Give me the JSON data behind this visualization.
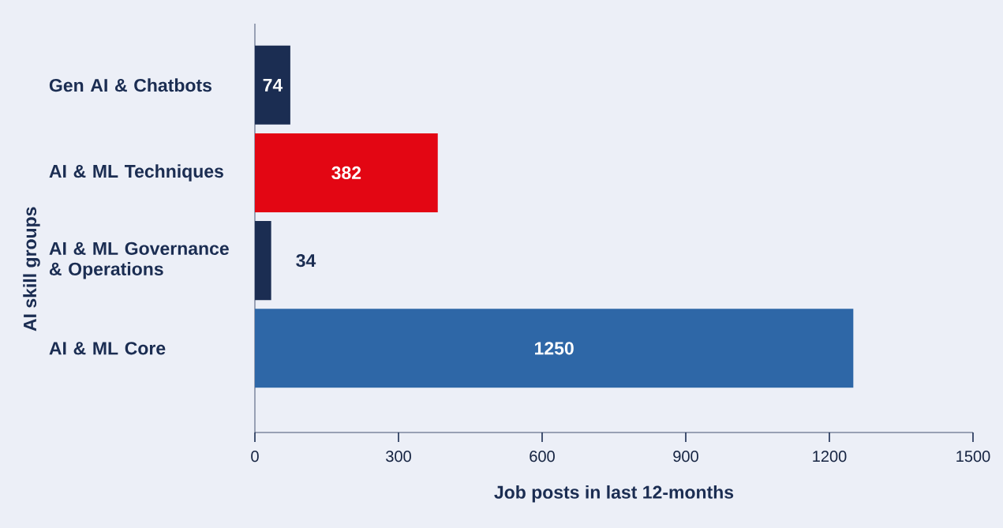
{
  "chart_data": {
    "type": "bar",
    "orientation": "horizontal",
    "categories": [
      "Gen AI & Chatbots",
      "AI & ML Techniques",
      "AI & ML Governance & Operations",
      "AI & ML Core"
    ],
    "values": [
      74,
      382,
      34,
      1250
    ],
    "colors": [
      "#1b2d52",
      "#e30613",
      "#1b2d52",
      "#2e67a7"
    ],
    "xlabel": "Job posts in last 12-months",
    "ylabel": "AI skill groups",
    "xlim": [
      0,
      1500
    ],
    "xticks": [
      0,
      300,
      600,
      900,
      1200,
      1500
    ],
    "data_labels": true
  }
}
